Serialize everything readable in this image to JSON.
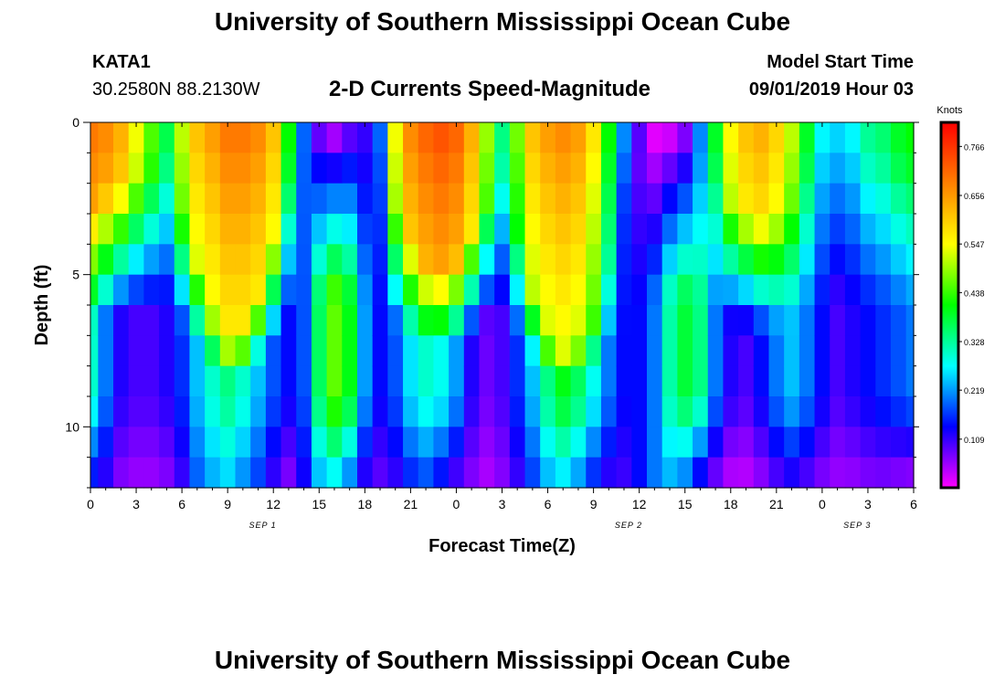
{
  "page": {
    "title_top": "University of Southern Mississippi Ocean Cube",
    "title_bottom": "University of Southern Mississippi Ocean Cube",
    "station_id": "KATA1",
    "station_coords": "30.2580N 88.2130W",
    "chart_title": "2-D Currents Speed-Magnitude",
    "model_start_label": "Model Start Time",
    "model_start_time": "09/01/2019 Hour 03"
  },
  "chart_data": {
    "type": "heatmap",
    "title": "2-D Currents Speed-Magnitude",
    "xlabel": "Forecast Time(Z)",
    "ylabel": "Depth (ft)",
    "xlim": [
      0,
      54
    ],
    "ylim": [
      0,
      12
    ],
    "y_inverted": true,
    "x_ticks": [
      {
        "v": 0,
        "label": "0"
      },
      {
        "v": 3,
        "label": "3"
      },
      {
        "v": 6,
        "label": "6"
      },
      {
        "v": 9,
        "label": "9"
      },
      {
        "v": 12,
        "label": "12"
      },
      {
        "v": 15,
        "label": "15"
      },
      {
        "v": 18,
        "label": "18"
      },
      {
        "v": 21,
        "label": "21"
      },
      {
        "v": 24,
        "label": "0"
      },
      {
        "v": 27,
        "label": "3"
      },
      {
        "v": 30,
        "label": "6"
      },
      {
        "v": 33,
        "label": "9"
      },
      {
        "v": 36,
        "label": "12"
      },
      {
        "v": 39,
        "label": "15"
      },
      {
        "v": 42,
        "label": "18"
      },
      {
        "v": 45,
        "label": "21"
      },
      {
        "v": 48,
        "label": "0"
      },
      {
        "v": 51,
        "label": "3"
      },
      {
        "v": 54,
        "label": "6"
      }
    ],
    "date_labels": [
      {
        "v": 11.3,
        "label": "SEP 1"
      },
      {
        "v": 35.3,
        "label": "SEP 2"
      },
      {
        "v": 50.3,
        "label": "SEP 3"
      }
    ],
    "y_ticks": [
      {
        "v": 0,
        "label": "0"
      },
      {
        "v": 5,
        "label": "5"
      },
      {
        "v": 10,
        "label": "10"
      }
    ],
    "colorbar": {
      "label": "Knots",
      "min": 0.0,
      "max": 0.82,
      "ticks": [
        0.109,
        0.219,
        0.328,
        0.438,
        0.547,
        0.656,
        0.766
      ],
      "tick_labels": [
        "0.109",
        "0.219",
        "0.328",
        "0.438",
        "0.547",
        "0.656",
        "0.766"
      ],
      "stops": [
        "#ff00ff",
        "#8000ff",
        "#0000ff",
        "#0080ff",
        "#00ffff",
        "#00ff80",
        "#00ff00",
        "#80ff00",
        "#ffff00",
        "#ffc000",
        "#ff8000",
        "#ff4000",
        "#ff0000"
      ]
    },
    "time_step_hours": 1,
    "depth_bins": 12,
    "depth_bin_edges": [
      0,
      1,
      2,
      3,
      4,
      5,
      6,
      7,
      8,
      9,
      10,
      11,
      12
    ],
    "surface_speed_profile": [
      0.7,
      0.68,
      0.64,
      0.55,
      0.46,
      0.38,
      0.52,
      0.62,
      0.66,
      0.7,
      0.7,
      0.68,
      0.62,
      0.42,
      0.2,
      0.08,
      0.04,
      0.1,
      0.12,
      0.2,
      0.55,
      0.68,
      0.72,
      0.74,
      0.72,
      0.64,
      0.5,
      0.35,
      0.48,
      0.62,
      0.66,
      0.68,
      0.66,
      0.58,
      0.42,
      0.22,
      0.1,
      0.02,
      0.03,
      0.08,
      0.22,
      0.4,
      0.56,
      0.62,
      0.64,
      0.6,
      0.52,
      0.4,
      0.28,
      0.26,
      0.28,
      0.34,
      0.36,
      0.4,
      0.42
    ],
    "core_depth_extent": [
      2.5,
      2.2,
      2.0,
      1.8,
      1.6,
      1.2,
      3.0,
      4.5,
      6.2,
      7.2,
      7.0,
      5.8,
      4.0,
      2.0,
      0.6,
      0.3,
      0.3,
      0.5,
      0.6,
      0.8,
      2.8,
      3.8,
      4.6,
      4.8,
      4.4,
      3.6,
      2.6,
      1.8,
      3.6,
      5.6,
      7.0,
      7.5,
      7.2,
      6.4,
      4.8,
      2.8,
      1.0,
      0.4,
      0.4,
      0.6,
      0.8,
      1.4,
      2.6,
      3.0,
      3.2,
      3.0,
      2.4,
      1.6,
      1.0,
      0.9,
      1.0,
      1.2,
      1.3,
      1.4,
      1.5
    ],
    "mid_depth_speed_profile": [
      0.3,
      0.2,
      0.12,
      0.1,
      0.1,
      0.12,
      0.16,
      0.24,
      0.3,
      0.34,
      0.3,
      0.24,
      0.18,
      0.14,
      0.18,
      0.36,
      0.46,
      0.4,
      0.22,
      0.14,
      0.18,
      0.26,
      0.3,
      0.28,
      0.22,
      0.12,
      0.08,
      0.1,
      0.16,
      0.24,
      0.34,
      0.4,
      0.36,
      0.28,
      0.2,
      0.14,
      0.14,
      0.2,
      0.32,
      0.38,
      0.34,
      0.2,
      0.12,
      0.1,
      0.14,
      0.2,
      0.24,
      0.2,
      0.14,
      0.1,
      0.12,
      0.14,
      0.16,
      0.18,
      0.2
    ],
    "bottom_speed_profile": [
      0.12,
      0.1,
      0.06,
      0.05,
      0.05,
      0.06,
      0.1,
      0.18,
      0.22,
      0.24,
      0.2,
      0.16,
      0.1,
      0.06,
      0.12,
      0.22,
      0.24,
      0.18,
      0.1,
      0.08,
      0.1,
      0.14,
      0.16,
      0.12,
      0.08,
      0.06,
      0.04,
      0.06,
      0.1,
      0.16,
      0.22,
      0.24,
      0.2,
      0.14,
      0.1,
      0.1,
      0.14,
      0.2,
      0.22,
      0.18,
      0.1,
      0.06,
      0.03,
      0.03,
      0.05,
      0.08,
      0.1,
      0.08,
      0.06,
      0.05,
      0.05,
      0.06,
      0.06,
      0.05,
      0.04
    ]
  }
}
